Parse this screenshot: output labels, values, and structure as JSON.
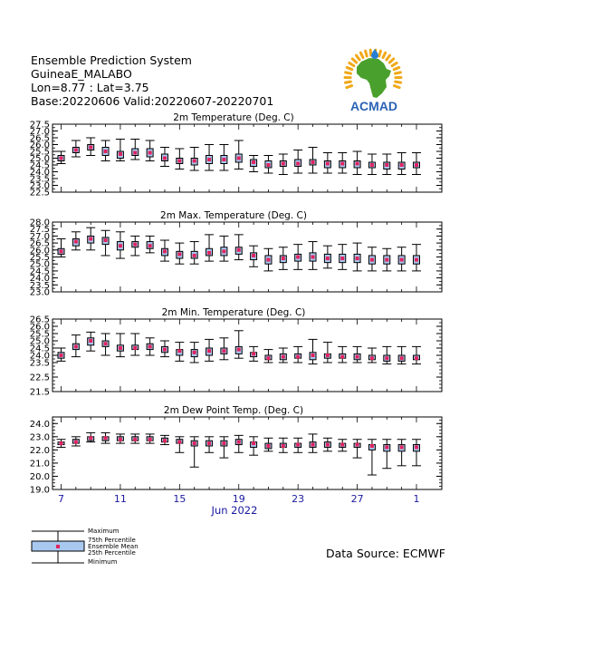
{
  "header": {
    "system": "Ensemble Prediction System",
    "location": "GuineaE_MALABO",
    "coords": "Lon=8.77 : Lat=3.75",
    "dates": "Base:20220606 Valid:20220607-20220701"
  },
  "logo": {
    "text": "ACMAD",
    "colors": {
      "africa": "#4aa02c",
      "rays": "#f0a818",
      "drop": "#2a7fd0",
      "text": "#2b63b5"
    }
  },
  "legend": {
    "maximum": "Maximum",
    "p75": "75th Percentile",
    "mean": "Ensemble Mean",
    "p25": "25th Percentile",
    "minimum": "Minimum"
  },
  "source": "Data Source: ECMWF",
  "colors": {
    "box": "#a8c8f0",
    "mean": "#e0245e",
    "axis_label": "#1a1aa0"
  },
  "chart_data": [
    {
      "type": "boxplot",
      "title": "2m Temperature (Deg. C)",
      "ylim": [
        22.5,
        27.5
      ],
      "yticks": [
        "22.5",
        "23.0",
        "23.5",
        "24.0",
        "24.5",
        "25.0",
        "25.5",
        "26.0",
        "26.5",
        "27.0",
        "27.5"
      ],
      "min": [
        24.6,
        25.1,
        25.2,
        24.8,
        24.8,
        24.9,
        24.8,
        24.4,
        24.2,
        24.1,
        24.1,
        24.1,
        24.2,
        24.0,
        23.9,
        23.8,
        23.9,
        23.9,
        23.9,
        23.9,
        23.8,
        23.8,
        23.8,
        23.8,
        23.8
      ],
      "p25": [
        24.8,
        25.4,
        25.6,
        25.2,
        25.0,
        25.2,
        25.1,
        24.8,
        24.6,
        24.5,
        24.6,
        24.6,
        24.7,
        24.4,
        24.3,
        24.4,
        24.4,
        24.5,
        24.3,
        24.3,
        24.3,
        24.3,
        24.2,
        24.2,
        24.3
      ],
      "mean": [
        25.0,
        25.6,
        25.8,
        25.5,
        25.3,
        25.4,
        25.4,
        25.0,
        24.8,
        24.8,
        24.9,
        24.9,
        25.0,
        24.7,
        24.5,
        24.6,
        24.6,
        24.7,
        24.6,
        24.6,
        24.6,
        24.5,
        24.5,
        24.5,
        24.5
      ],
      "p75": [
        25.2,
        25.8,
        26.0,
        25.8,
        25.5,
        25.7,
        25.7,
        25.3,
        25.0,
        25.0,
        25.2,
        25.2,
        25.3,
        24.9,
        24.8,
        24.8,
        24.9,
        24.9,
        24.8,
        24.8,
        24.8,
        24.7,
        24.7,
        24.7,
        24.7
      ],
      "max": [
        25.5,
        26.3,
        26.5,
        26.3,
        26.4,
        26.4,
        26.3,
        25.8,
        25.7,
        25.8,
        26.0,
        26.0,
        26.3,
        25.2,
        25.2,
        25.3,
        25.6,
        25.8,
        25.4,
        25.4,
        25.5,
        25.3,
        25.3,
        25.4,
        25.4
      ]
    },
    {
      "type": "boxplot",
      "title": "2m Max. Temperature (Deg. C)",
      "ylim": [
        23.0,
        28.0
      ],
      "yticks": [
        "23.0",
        "23.5",
        "24.0",
        "24.5",
        "25.0",
        "25.5",
        "26.0",
        "26.5",
        "27.0",
        "27.5",
        "28.0"
      ],
      "min": [
        25.5,
        26.0,
        26.0,
        25.6,
        25.4,
        25.6,
        25.8,
        25.2,
        25.0,
        25.0,
        25.2,
        25.2,
        25.3,
        24.8,
        24.5,
        24.6,
        24.6,
        24.6,
        24.7,
        24.6,
        24.5,
        24.5,
        24.5,
        24.5,
        24.5
      ],
      "p25": [
        25.7,
        26.3,
        26.5,
        26.4,
        26.0,
        26.2,
        26.1,
        25.6,
        25.4,
        25.4,
        25.6,
        25.6,
        25.7,
        25.3,
        25.0,
        25.1,
        25.2,
        25.2,
        25.1,
        25.1,
        25.1,
        25.0,
        25.0,
        25.0,
        25.0
      ],
      "mean": [
        25.9,
        26.6,
        26.8,
        26.7,
        26.3,
        26.4,
        26.3,
        25.9,
        25.7,
        25.6,
        25.8,
        25.9,
        26.0,
        25.6,
        25.3,
        25.4,
        25.5,
        25.5,
        25.4,
        25.4,
        25.4,
        25.3,
        25.3,
        25.3,
        25.3
      ],
      "p75": [
        26.1,
        26.8,
        27.0,
        26.9,
        26.6,
        26.6,
        26.6,
        26.1,
        25.9,
        25.9,
        26.1,
        26.2,
        26.2,
        25.8,
        25.6,
        25.6,
        25.7,
        25.8,
        25.7,
        25.7,
        25.7,
        25.6,
        25.6,
        25.6,
        25.6
      ],
      "max": [
        26.8,
        27.3,
        27.6,
        27.4,
        27.3,
        27.0,
        27.0,
        26.7,
        26.5,
        26.6,
        27.1,
        27.0,
        27.1,
        26.3,
        26.1,
        26.2,
        26.4,
        26.6,
        26.3,
        26.4,
        26.5,
        26.2,
        26.1,
        26.2,
        26.4
      ]
    },
    {
      "type": "boxplot",
      "title": "2m Min. Temperature (Deg. C)",
      "ylim": [
        21.5,
        26.5
      ],
      "yticks": [
        "21.5",
        "22.5",
        "23.5",
        "24.0",
        "24.5",
        "25.0",
        "25.5",
        "26.0",
        "26.5"
      ],
      "min": [
        23.6,
        23.9,
        24.3,
        24.0,
        23.9,
        24.0,
        24.0,
        23.9,
        23.6,
        23.5,
        23.6,
        23.7,
        23.8,
        23.6,
        23.5,
        23.5,
        23.5,
        23.4,
        23.5,
        23.5,
        23.5,
        23.5,
        23.4,
        23.4,
        23.4
      ],
      "p25": [
        23.8,
        24.4,
        24.7,
        24.6,
        24.3,
        24.4,
        24.4,
        24.2,
        24.0,
        23.9,
        24.0,
        24.1,
        24.1,
        23.9,
        23.7,
        23.7,
        23.8,
        23.7,
        23.8,
        23.8,
        23.7,
        23.7,
        23.6,
        23.6,
        23.7
      ],
      "mean": [
        24.0,
        24.6,
        25.0,
        24.8,
        24.5,
        24.5,
        24.6,
        24.4,
        24.3,
        24.2,
        24.3,
        24.3,
        24.4,
        24.1,
        23.8,
        23.9,
        23.9,
        24.0,
        24.0,
        23.9,
        23.9,
        23.8,
        23.8,
        23.8,
        23.8
      ],
      "p75": [
        24.2,
        24.8,
        25.2,
        25.0,
        24.7,
        24.7,
        24.8,
        24.6,
        24.4,
        24.4,
        24.5,
        24.5,
        24.6,
        24.2,
        24.0,
        24.1,
        24.1,
        24.2,
        24.1,
        24.1,
        24.1,
        24.0,
        24.0,
        24.0,
        24.0
      ],
      "max": [
        24.5,
        25.4,
        25.6,
        25.5,
        25.5,
        25.5,
        25.2,
        25.0,
        24.9,
        24.9,
        25.1,
        25.2,
        25.7,
        24.6,
        24.4,
        24.5,
        24.6,
        25.1,
        24.9,
        24.6,
        24.6,
        24.5,
        24.6,
        24.6,
        24.6
      ]
    },
    {
      "type": "boxplot",
      "title": "2m Dew Point Temp. (Deg. C)",
      "ylim": [
        19.0,
        24.5
      ],
      "yticks": [
        "19.0",
        "20.0",
        "21.0",
        "22.0",
        "23.0",
        "24.0"
      ],
      "min": [
        22.2,
        22.3,
        22.6,
        22.5,
        22.5,
        22.5,
        22.5,
        22.4,
        21.8,
        20.7,
        21.8,
        21.4,
        21.8,
        21.6,
        21.9,
        21.8,
        21.8,
        21.8,
        21.9,
        21.9,
        21.4,
        20.1,
        20.6,
        20.8,
        20.8
      ],
      "p25": [
        22.4,
        22.5,
        22.7,
        22.7,
        22.7,
        22.7,
        22.7,
        22.6,
        22.5,
        22.3,
        22.3,
        22.3,
        22.4,
        22.2,
        22.1,
        22.2,
        22.2,
        22.2,
        22.2,
        22.2,
        22.2,
        22.0,
        21.9,
        21.9,
        21.9
      ],
      "mean": [
        22.5,
        22.6,
        22.9,
        22.9,
        22.8,
        22.8,
        22.8,
        22.7,
        22.6,
        22.5,
        22.5,
        22.5,
        22.6,
        22.5,
        22.3,
        22.3,
        22.4,
        22.4,
        22.4,
        22.4,
        22.4,
        22.3,
        22.2,
        22.2,
        22.2
      ],
      "p75": [
        22.6,
        22.8,
        23.0,
        23.0,
        23.0,
        23.0,
        23.0,
        22.9,
        22.8,
        22.7,
        22.7,
        22.7,
        22.8,
        22.6,
        22.5,
        22.5,
        22.5,
        22.6,
        22.6,
        22.5,
        22.5,
        22.4,
        22.4,
        22.4,
        22.4
      ],
      "max": [
        22.8,
        23.0,
        23.3,
        23.3,
        23.2,
        23.2,
        23.2,
        23.1,
        23.0,
        23.0,
        23.0,
        23.0,
        23.1,
        23.0,
        22.9,
        22.9,
        22.9,
        23.2,
        22.9,
        22.8,
        22.8,
        22.8,
        22.8,
        22.8,
        22.8
      ]
    }
  ],
  "xaxis": {
    "tick_labels": [
      {
        "index": 0,
        "label": "7"
      },
      {
        "index": 4,
        "label": "11"
      },
      {
        "index": 8,
        "label": "15"
      },
      {
        "index": 12,
        "label": "19"
      },
      {
        "index": 16,
        "label": "23"
      },
      {
        "index": 20,
        "label": "27"
      },
      {
        "index": 24,
        "label": "1"
      }
    ],
    "label": "Jun 2022"
  }
}
